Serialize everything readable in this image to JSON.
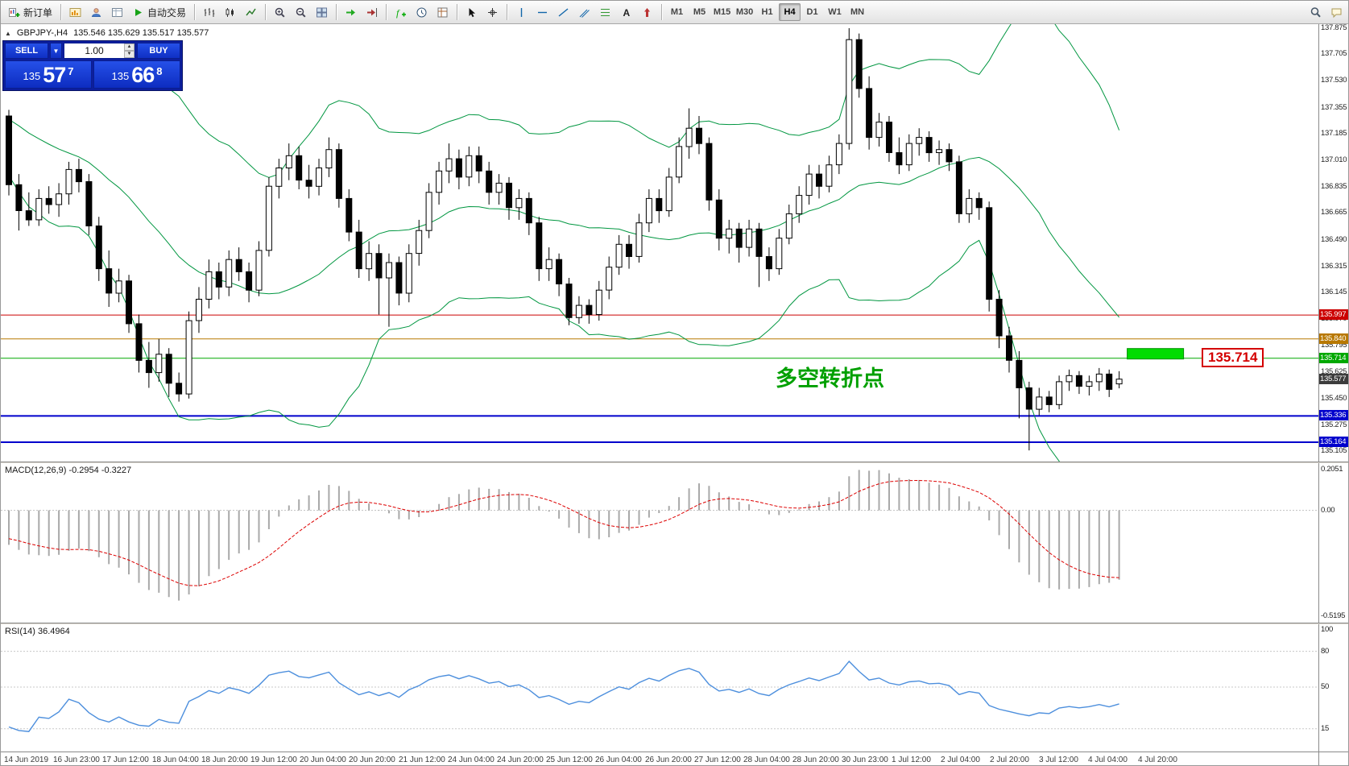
{
  "toolbar": {
    "new_order_label": "新订单",
    "autotrading_label": "自动交易",
    "timeframes": [
      "M1",
      "M5",
      "M15",
      "M30",
      "H1",
      "H4",
      "D1",
      "W1",
      "MN"
    ],
    "active_timeframe": "H4",
    "items": [
      {
        "icon": "new-order",
        "label": "新订单",
        "name": "new-order-button"
      },
      {
        "sep": true
      },
      {
        "icon": "chart-window",
        "name": "charts-bar-button"
      },
      {
        "icon": "profile",
        "name": "profiles-button"
      },
      {
        "icon": "data-window",
        "name": "data-window-button"
      },
      {
        "icon": "autotrading",
        "label": "自动交易",
        "name": "autotrading-button"
      },
      {
        "sep": true
      },
      {
        "icon": "bars-chart",
        "name": "bar-chart-button"
      },
      {
        "icon": "candle-chart",
        "name": "candlestick-chart-button"
      },
      {
        "icon": "line-chart",
        "name": "line-chart-button"
      },
      {
        "sep": true
      },
      {
        "icon": "zoom-in",
        "name": "zoom-in-button"
      },
      {
        "icon": "zoom-out",
        "name": "zoom-out-button"
      },
      {
        "icon": "tile-windows",
        "name": "tile-windows-button"
      },
      {
        "sep": true
      },
      {
        "icon": "auto-scroll",
        "name": "auto-scroll-button"
      },
      {
        "icon": "chart-shift",
        "name": "chart-shift-button"
      },
      {
        "sep": true
      },
      {
        "icon": "indicators",
        "name": "indicators-button"
      },
      {
        "icon": "period",
        "name": "periods-button"
      },
      {
        "icon": "template",
        "name": "templates-button"
      },
      {
        "sep": true
      },
      {
        "icon": "cursor",
        "name": "cursor-button"
      },
      {
        "icon": "crosshair",
        "name": "crosshair-button"
      },
      {
        "sep": true
      },
      {
        "icon": "vline",
        "name": "vertical-line-button"
      },
      {
        "icon": "hline",
        "name": "horizontal-line-button"
      },
      {
        "icon": "trendline",
        "name": "trendline-button"
      },
      {
        "icon": "channel",
        "name": "channel-button"
      },
      {
        "icon": "fibo",
        "name": "fibonacci-button"
      },
      {
        "icon": "text",
        "name": "text-button"
      },
      {
        "icon": "arrows",
        "name": "arrows-button"
      },
      {
        "sep": true
      },
      {
        "tf": true
      },
      {
        "spacer": true
      },
      {
        "icon": "search",
        "name": "search-button"
      },
      {
        "icon": "chat",
        "name": "chat-button"
      }
    ]
  },
  "chart": {
    "symbol": "GBPJPY-,H4",
    "ohlc_text": "135.546 135.629 135.517 135.577",
    "trade_panel": {
      "sell_label": "SELL",
      "buy_label": "BUY",
      "volume": "1.00",
      "price_prefix": "135",
      "sell_big": "57",
      "sell_sup": "7",
      "buy_big": "66",
      "buy_sup": "8"
    }
  },
  "macd": {
    "label": "MACD(12,26,9) -0.2954 -0.3227"
  },
  "rsi": {
    "label": "RSI(14) 36.4964"
  },
  "chart_data": {
    "type": "candlestick",
    "symbol": "GBPJPY-",
    "timeframe": "H4",
    "title": "GBPJPY-,H4",
    "last_ohlc": [
      135.546,
      135.629,
      135.517,
      135.577
    ],
    "current_price": 135.577,
    "price_range": [
      135.105,
      137.875
    ],
    "annotation": "多空转折点",
    "callout_label": "135.714",
    "highlight_box_price": 135.714,
    "price_ticks": [
      "137.875",
      "137.705",
      "137.530",
      "137.355",
      "137.185",
      "137.010",
      "136.835",
      "136.665",
      "136.490",
      "136.315",
      "136.145",
      "135.970",
      "135.795",
      "135.625",
      "135.450",
      "135.275",
      "135.105"
    ],
    "time_labels": [
      "14 Jun 2019",
      "16 Jun 23:00",
      "17 Jun 12:00",
      "18 Jun 04:00",
      "18 Jun 20:00",
      "19 Jun 12:00",
      "20 Jun 04:00",
      "20 Jun 20:00",
      "21 Jun 12:00",
      "24 Jun 04:00",
      "24 Jun 20:00",
      "25 Jun 12:00",
      "26 Jun 04:00",
      "26 Jun 20:00",
      "27 Jun 12:00",
      "28 Jun 04:00",
      "28 Jun 20:00",
      "30 Jun 23:00",
      "1 Jul 12:00",
      "2 Jul 04:00",
      "2 Jul 20:00",
      "3 Jul 12:00",
      "4 Jul 04:00",
      "4 Jul 20:00"
    ],
    "hlines": [
      {
        "price": 135.997,
        "color": "#cc0000",
        "width": 1,
        "label": "135.997"
      },
      {
        "price": 135.84,
        "color": "#b87800",
        "width": 1,
        "label": "135.840"
      },
      {
        "price": 135.714,
        "color": "#00a800",
        "width": 1,
        "label": "135.714"
      },
      {
        "price": 135.577,
        "color": "#3c3c3c",
        "width": 0,
        "label": "135.577"
      },
      {
        "price": 135.336,
        "color": "#0000cc",
        "width": 2,
        "label": "135.336"
      },
      {
        "price": 135.164,
        "color": "#0000cc",
        "width": 2,
        "label": "135.164"
      }
    ],
    "overlays": {
      "bollinger": {
        "period": 20,
        "deviation": 2,
        "color": "#009640"
      }
    },
    "panels": {
      "macd": {
        "fast": 12,
        "slow": 26,
        "signal": 9,
        "display_values": [
          -0.2954,
          -0.3227
        ],
        "range": [
          -0.5195,
          0.2051
        ],
        "axis": [
          "0.2051",
          "0.00",
          "-0.5195"
        ]
      },
      "rsi": {
        "period": 14,
        "display_value": 36.4964,
        "range": [
          0,
          100
        ],
        "axis_values": [
          100,
          80,
          50,
          15
        ],
        "levels": [
          80,
          50,
          15
        ]
      }
    },
    "indicator_warmup": {
      "start": 137.75,
      "end": 137.05,
      "count": 26
    },
    "ohlc": [
      [
        137.3,
        137.34,
        136.78,
        136.85
      ],
      [
        136.85,
        136.92,
        136.55,
        136.68
      ],
      [
        136.68,
        136.8,
        136.58,
        136.62
      ],
      [
        136.62,
        136.82,
        136.58,
        136.76
      ],
      [
        136.76,
        136.84,
        136.66,
        136.72
      ],
      [
        136.72,
        136.86,
        136.64,
        136.79
      ],
      [
        136.79,
        137.0,
        136.72,
        136.95
      ],
      [
        136.95,
        137.02,
        136.8,
        136.87
      ],
      [
        136.87,
        136.92,
        136.52,
        136.58
      ],
      [
        136.58,
        136.64,
        136.22,
        136.3
      ],
      [
        136.3,
        136.42,
        136.05,
        136.14
      ],
      [
        136.14,
        136.3,
        136.08,
        136.22
      ],
      [
        136.22,
        136.26,
        135.88,
        135.94
      ],
      [
        135.94,
        136.0,
        135.62,
        135.7
      ],
      [
        135.7,
        135.82,
        135.52,
        135.62
      ],
      [
        135.62,
        135.84,
        135.56,
        135.74
      ],
      [
        135.74,
        135.78,
        135.46,
        135.55
      ],
      [
        135.55,
        135.62,
        135.43,
        135.48
      ],
      [
        135.48,
        136.02,
        135.45,
        135.96
      ],
      [
        135.96,
        136.18,
        135.88,
        136.1
      ],
      [
        136.1,
        136.36,
        136.04,
        136.28
      ],
      [
        136.28,
        136.34,
        136.1,
        136.18
      ],
      [
        136.18,
        136.42,
        136.12,
        136.36
      ],
      [
        136.36,
        136.44,
        136.22,
        136.28
      ],
      [
        136.28,
        136.34,
        136.08,
        136.16
      ],
      [
        136.16,
        136.48,
        136.12,
        136.42
      ],
      [
        136.42,
        136.9,
        136.38,
        136.84
      ],
      [
        136.84,
        137.02,
        136.76,
        136.96
      ],
      [
        136.96,
        137.12,
        136.88,
        137.04
      ],
      [
        137.04,
        137.1,
        136.82,
        136.88
      ],
      [
        136.88,
        136.98,
        136.76,
        136.84
      ],
      [
        136.84,
        137.02,
        136.78,
        136.96
      ],
      [
        136.96,
        137.16,
        136.9,
        137.08
      ],
      [
        137.08,
        137.12,
        136.7,
        136.76
      ],
      [
        136.76,
        136.82,
        136.48,
        136.54
      ],
      [
        136.54,
        136.62,
        136.24,
        136.3
      ],
      [
        136.3,
        136.48,
        136.22,
        136.4
      ],
      [
        136.4,
        136.46,
        136.0,
        136.24
      ],
      [
        136.24,
        136.4,
        135.92,
        136.34
      ],
      [
        136.34,
        136.38,
        136.06,
        136.14
      ],
      [
        136.14,
        136.46,
        136.08,
        136.4
      ],
      [
        136.4,
        136.62,
        136.32,
        136.55
      ],
      [
        136.55,
        136.86,
        136.5,
        136.8
      ],
      [
        136.8,
        137.0,
        136.72,
        136.94
      ],
      [
        136.94,
        137.12,
        136.86,
        137.02
      ],
      [
        137.02,
        137.08,
        136.82,
        136.9
      ],
      [
        136.9,
        137.1,
        136.84,
        137.04
      ],
      [
        137.04,
        137.1,
        136.86,
        136.94
      ],
      [
        136.94,
        137.0,
        136.72,
        136.8
      ],
      [
        136.8,
        136.92,
        136.72,
        136.86
      ],
      [
        136.86,
        136.9,
        136.62,
        136.7
      ],
      [
        136.7,
        136.82,
        136.62,
        136.76
      ],
      [
        136.76,
        136.8,
        136.52,
        136.6
      ],
      [
        136.6,
        136.64,
        136.22,
        136.3
      ],
      [
        136.3,
        136.44,
        136.22,
        136.36
      ],
      [
        136.36,
        136.4,
        136.12,
        136.2
      ],
      [
        136.2,
        136.24,
        135.93,
        135.98
      ],
      [
        135.98,
        136.12,
        135.94,
        136.06
      ],
      [
        136.06,
        136.1,
        135.94,
        136.0
      ],
      [
        136.0,
        136.22,
        135.96,
        136.16
      ],
      [
        136.16,
        136.38,
        136.1,
        136.31
      ],
      [
        136.31,
        136.52,
        136.26,
        136.46
      ],
      [
        136.46,
        136.52,
        136.3,
        136.38
      ],
      [
        136.38,
        136.66,
        136.34,
        136.6
      ],
      [
        136.6,
        136.82,
        136.54,
        136.76
      ],
      [
        136.76,
        136.82,
        136.6,
        136.68
      ],
      [
        136.68,
        136.96,
        136.64,
        136.9
      ],
      [
        136.9,
        137.16,
        136.86,
        137.1
      ],
      [
        137.1,
        137.35,
        137.02,
        137.22
      ],
      [
        137.22,
        137.3,
        137.05,
        137.12
      ],
      [
        137.12,
        137.16,
        136.68,
        136.75
      ],
      [
        136.75,
        136.82,
        136.42,
        136.5
      ],
      [
        136.5,
        136.62,
        136.4,
        136.56
      ],
      [
        136.56,
        136.6,
        136.34,
        136.44
      ],
      [
        136.44,
        136.62,
        136.38,
        136.56
      ],
      [
        136.56,
        136.6,
        136.18,
        136.38
      ],
      [
        136.38,
        136.44,
        136.22,
        136.3
      ],
      [
        136.3,
        136.56,
        136.26,
        136.5
      ],
      [
        136.5,
        136.72,
        136.46,
        136.66
      ],
      [
        136.66,
        136.84,
        136.6,
        136.78
      ],
      [
        136.78,
        136.98,
        136.72,
        136.92
      ],
      [
        136.92,
        136.98,
        136.76,
        136.84
      ],
      [
        136.84,
        137.04,
        136.8,
        136.98
      ],
      [
        136.98,
        137.18,
        136.92,
        137.12
      ],
      [
        137.12,
        137.875,
        137.08,
        137.8
      ],
      [
        137.8,
        137.84,
        137.42,
        137.48
      ],
      [
        137.48,
        137.56,
        137.08,
        137.16
      ],
      [
        137.16,
        137.32,
        137.1,
        137.26
      ],
      [
        137.26,
        137.3,
        137.0,
        137.06
      ],
      [
        137.06,
        137.16,
        136.92,
        136.98
      ],
      [
        136.98,
        137.18,
        136.94,
        137.12
      ],
      [
        137.12,
        137.22,
        137.04,
        137.16
      ],
      [
        137.16,
        137.2,
        137.0,
        137.06
      ],
      [
        137.06,
        137.14,
        136.98,
        137.08
      ],
      [
        137.08,
        137.12,
        136.94,
        137.0
      ],
      [
        137.0,
        137.04,
        136.6,
        136.66
      ],
      [
        136.66,
        136.82,
        136.6,
        136.76
      ],
      [
        136.76,
        136.8,
        136.62,
        136.7
      ],
      [
        136.7,
        136.74,
        136.02,
        136.1
      ],
      [
        136.1,
        136.16,
        135.78,
        135.86
      ],
      [
        135.86,
        135.92,
        135.62,
        135.7
      ],
      [
        135.7,
        135.76,
        135.32,
        135.52
      ],
      [
        135.52,
        135.56,
        135.11,
        135.38
      ],
      [
        135.38,
        135.52,
        135.34,
        135.46
      ],
      [
        135.46,
        135.5,
        135.36,
        135.41
      ],
      [
        135.41,
        135.6,
        135.38,
        135.56
      ],
      [
        135.56,
        135.64,
        135.5,
        135.6
      ],
      [
        135.6,
        135.63,
        135.48,
        135.53
      ],
      [
        135.53,
        135.6,
        135.47,
        135.56
      ],
      [
        135.56,
        135.65,
        135.5,
        135.61
      ],
      [
        135.61,
        135.64,
        135.46,
        135.51
      ],
      [
        135.546,
        135.629,
        135.517,
        135.577
      ]
    ]
  }
}
